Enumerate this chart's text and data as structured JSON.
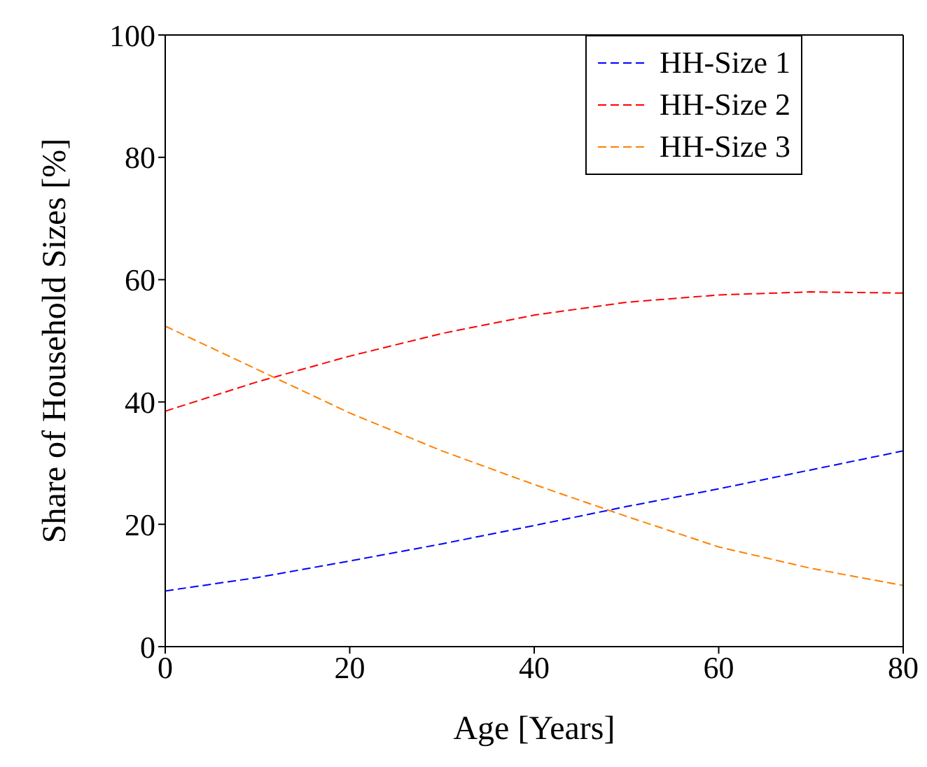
{
  "chart_data": {
    "type": "line",
    "xlabel": "Age [Years]",
    "ylabel": "Share of Household Sizes [%]",
    "xlim": [
      0,
      80
    ],
    "ylim": [
      0,
      100
    ],
    "xticks": [
      0,
      20,
      40,
      60,
      80
    ],
    "yticks": [
      0,
      20,
      40,
      60,
      80,
      100
    ],
    "grid": false,
    "legend": "top right",
    "marker": "none",
    "line_style": "dashed",
    "x": [
      0,
      10,
      20,
      30,
      40,
      50,
      60,
      70,
      80
    ],
    "series": [
      {
        "name": "HH-Size 1",
        "color": "#0000ff",
        "values": [
          9.1,
          11.3,
          14,
          16.8,
          19.8,
          22.9,
          25.8,
          28.9,
          32
        ]
      },
      {
        "name": "HH-Size 2",
        "color": "#ff0000",
        "values": [
          38.5,
          43.3,
          47.5,
          51.2,
          54.2,
          56.3,
          57.5,
          58,
          57.8
        ]
      },
      {
        "name": "HH-Size 3",
        "color": "#ff8000",
        "values": [
          52.4,
          45.3,
          38.2,
          32,
          26.5,
          21.3,
          16.3,
          12.8,
          10
        ]
      }
    ]
  }
}
